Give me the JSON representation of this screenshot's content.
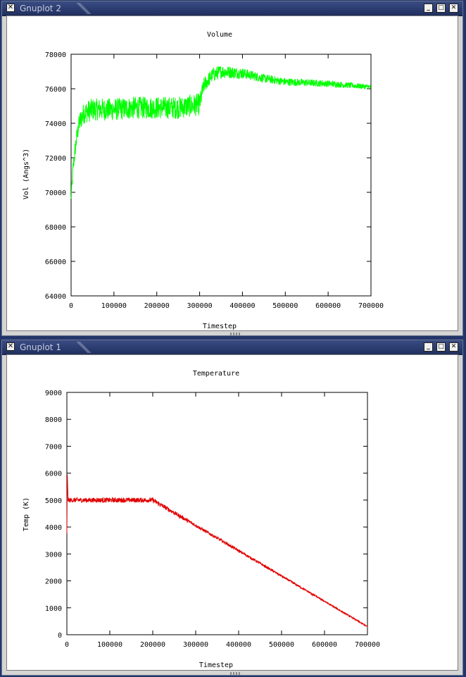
{
  "windows": [
    {
      "title": "Gnuplot 2",
      "controls": {
        "close": "✕",
        "minimize": "_",
        "maximize": "□",
        "close_right": "✕"
      }
    },
    {
      "title": "Gnuplot 1",
      "controls": {
        "close": "✕",
        "minimize": "_",
        "maximize": "□",
        "close_right": "✕"
      }
    }
  ],
  "chart_data": [
    {
      "type": "line",
      "title": "Volume",
      "xlabel": "Timestep",
      "ylabel": "Vol (Angs^3)",
      "xlim": [
        0,
        700000
      ],
      "ylim": [
        64000,
        78000
      ],
      "xticks": [
        0,
        100000,
        200000,
        300000,
        400000,
        500000,
        600000,
        700000
      ],
      "yticks": [
        64000,
        66000,
        68000,
        70000,
        72000,
        74000,
        76000,
        78000
      ],
      "grid": false,
      "series_color": "#00ff00",
      "trend": {
        "x": [
          0,
          5000,
          10000,
          15000,
          20000,
          30000,
          50000,
          100000,
          150000,
          200000,
          250000,
          300000,
          310000,
          330000,
          350000,
          400000,
          450000,
          500000,
          600000,
          700000
        ],
        "y": [
          69600,
          71500,
          72600,
          73500,
          74100,
          74600,
          74800,
          74800,
          74900,
          74900,
          74900,
          75100,
          76200,
          76800,
          77000,
          76900,
          76600,
          76400,
          76300,
          76100
        ]
      },
      "noise_amplitude": {
        "x": [
          0,
          20000,
          40000,
          300000,
          310000,
          450000,
          700000
        ],
        "y": [
          400,
          600,
          650,
          650,
          450,
          250,
          150
        ]
      }
    },
    {
      "type": "line",
      "title": "Temperature",
      "xlabel": "Timestep",
      "ylabel": "Temp (K)",
      "xlim": [
        0,
        700000
      ],
      "ylim": [
        0,
        9000
      ],
      "xticks": [
        0,
        100000,
        200000,
        300000,
        400000,
        500000,
        600000,
        700000
      ],
      "yticks": [
        0,
        1000,
        2000,
        3000,
        4000,
        5000,
        6000,
        7000,
        8000,
        9000
      ],
      "grid": false,
      "series_color": "#e00000",
      "trend": {
        "x": [
          0,
          1000,
          3000,
          200000,
          700000
        ],
        "y": [
          3800,
          5900,
          5000,
          5000,
          300
        ]
      },
      "noise_amplitude": {
        "x": [
          0,
          200000,
          300000,
          700000
        ],
        "y": [
          90,
          90,
          60,
          20
        ]
      }
    }
  ]
}
